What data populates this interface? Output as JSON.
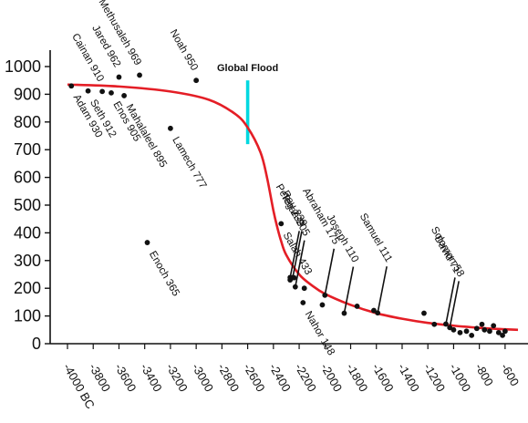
{
  "chart_data": {
    "type": "scatter",
    "title": "",
    "xlabel": "",
    "ylabel": "",
    "xlim": [
      -4000,
      -500
    ],
    "ylim": [
      0,
      1050
    ],
    "y_ticks": [
      {
        "value": 0,
        "label": "0"
      },
      {
        "value": 100,
        "label": "100"
      },
      {
        "value": 200,
        "label": "200"
      },
      {
        "value": 300,
        "label": "300"
      },
      {
        "value": 400,
        "label": "400"
      },
      {
        "value": 500,
        "label": "500"
      },
      {
        "value": 600,
        "label": "600"
      },
      {
        "value": 700,
        "label": "700"
      },
      {
        "value": 800,
        "label": "800"
      },
      {
        "value": 900,
        "label": "900"
      },
      {
        "value": 1000,
        "label": "1000"
      }
    ],
    "x_ticks": [
      {
        "value": -4000,
        "label": "-4000 BC"
      },
      {
        "value": -3800,
        "label": "-3800"
      },
      {
        "value": -3600,
        "label": "-3600"
      },
      {
        "value": -3400,
        "label": "-3400"
      },
      {
        "value": -3200,
        "label": "-3200"
      },
      {
        "value": -3000,
        "label": "-3000"
      },
      {
        "value": -2800,
        "label": "-2800"
      },
      {
        "value": -2600,
        "label": "-2600"
      },
      {
        "value": -2400,
        "label": "-2400"
      },
      {
        "value": -2200,
        "label": "-2200"
      },
      {
        "value": -2000,
        "label": "-2000"
      },
      {
        "value": -1800,
        "label": "-1800"
      },
      {
        "value": -1600,
        "label": "-1600"
      },
      {
        "value": -1400,
        "label": "-1400"
      },
      {
        "value": -1200,
        "label": "-1200"
      },
      {
        "value": -1000,
        "label": "-1000"
      },
      {
        "value": -800,
        "label": "-800"
      },
      {
        "value": -600,
        "label": "-600"
      }
    ],
    "labeled_points": [
      {
        "x": -3970,
        "y": 930,
        "label": "Adam 930",
        "side": "below"
      },
      {
        "x": -3840,
        "y": 912,
        "label": "Seth 912",
        "side": "below"
      },
      {
        "x": -3730,
        "y": 910,
        "label": "Cainan 910",
        "side": "above"
      },
      {
        "x": -3660,
        "y": 905,
        "label": "Enos 905",
        "side": "below"
      },
      {
        "x": -3600,
        "y": 962,
        "label": "Jared 962",
        "side": "above"
      },
      {
        "x": -3560,
        "y": 895,
        "label": "Mahalaleel 895",
        "side": "below"
      },
      {
        "x": -3440,
        "y": 969,
        "label": "Methusaleh 969",
        "side": "above"
      },
      {
        "x": -3380,
        "y": 365,
        "label": "Enoch 365",
        "side": "below"
      },
      {
        "x": -3200,
        "y": 777,
        "label": "Lamech 777",
        "side": "below"
      },
      {
        "x": -3000,
        "y": 950,
        "label": "Noah 950",
        "side": "above"
      },
      {
        "x": -2340,
        "y": 433,
        "label": "Salah 433",
        "side": "below"
      },
      {
        "x": -2270,
        "y": 239,
        "label": "Peleg 239",
        "side": "above"
      },
      {
        "x": -2250,
        "y": 239,
        "label": "Reu 239",
        "side": "above"
      },
      {
        "x": -2230,
        "y": 205,
        "label": "Terah 205",
        "side": "above"
      },
      {
        "x": -2170,
        "y": 148,
        "label": "Nahor 148",
        "side": "below"
      },
      {
        "x": -2000,
        "y": 175,
        "label": "Abraham 175",
        "side": "above"
      },
      {
        "x": -1850,
        "y": 110,
        "label": "Joseph 110",
        "side": "above"
      },
      {
        "x": -1590,
        "y": 111,
        "label": "Samuel 111",
        "side": "above"
      },
      {
        "x": -1060,
        "y": 71,
        "label": "David 71",
        "side": "above"
      },
      {
        "x": -1030,
        "y": 58,
        "label": "Solomon 58",
        "side": "above"
      }
    ],
    "unlabeled_points": [
      {
        "x": -2270,
        "y": 230
      },
      {
        "x": -2240,
        "y": 238
      },
      {
        "x": -2160,
        "y": 200
      },
      {
        "x": -2020,
        "y": 140
      },
      {
        "x": -1750,
        "y": 135
      },
      {
        "x": -1620,
        "y": 120
      },
      {
        "x": -1230,
        "y": 110
      },
      {
        "x": -1150,
        "y": 70
      },
      {
        "x": -1000,
        "y": 50
      },
      {
        "x": -950,
        "y": 40
      },
      {
        "x": -900,
        "y": 45
      },
      {
        "x": -860,
        "y": 30
      },
      {
        "x": -820,
        "y": 55
      },
      {
        "x": -780,
        "y": 70
      },
      {
        "x": -760,
        "y": 50
      },
      {
        "x": -720,
        "y": 45
      },
      {
        "x": -690,
        "y": 65
      },
      {
        "x": -650,
        "y": 40
      },
      {
        "x": -620,
        "y": 30
      },
      {
        "x": -600,
        "y": 45
      }
    ],
    "trend_curve": {
      "color": "#e41e26",
      "points": [
        [
          -4000,
          935
        ],
        [
          -3600,
          928
        ],
        [
          -3200,
          910
        ],
        [
          -2900,
          880
        ],
        [
          -2700,
          830
        ],
        [
          -2600,
          780
        ],
        [
          -2500,
          690
        ],
        [
          -2450,
          600
        ],
        [
          -2400,
          480
        ],
        [
          -2370,
          420
        ],
        [
          -2340,
          370
        ],
        [
          -2300,
          320
        ],
        [
          -2200,
          250
        ],
        [
          -2100,
          210
        ],
        [
          -2000,
          180
        ],
        [
          -1800,
          140
        ],
        [
          -1600,
          110
        ],
        [
          -1400,
          90
        ],
        [
          -1200,
          75
        ],
        [
          -1000,
          65
        ],
        [
          -800,
          57
        ],
        [
          -600,
          52
        ],
        [
          -500,
          50
        ]
      ]
    },
    "flood_marker": {
      "x": -2600,
      "y_range": [
        720,
        950
      ],
      "label": "Global Flood",
      "color": "#00d8e0"
    }
  }
}
